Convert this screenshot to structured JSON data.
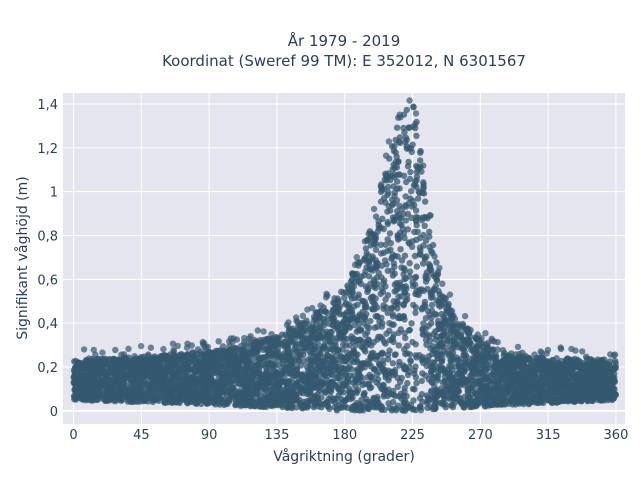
{
  "chart_data": {
    "type": "scatter",
    "title_line1": "År 1979 - 2019",
    "title_line2": "Koordinat (Sweref 99 TM): E 352012, N 6301567",
    "xlabel": "Vågriktning (grader)",
    "ylabel": "Signifikant våghöjd (m)",
    "xlim": [
      -7,
      366
    ],
    "ylim": [
      -0.06,
      1.45
    ],
    "x_ticks": [
      0,
      45,
      90,
      135,
      180,
      225,
      270,
      315,
      360
    ],
    "x_tick_labels": [
      "0",
      "45",
      "90",
      "135",
      "180",
      "225",
      "270",
      "315",
      "360"
    ],
    "y_ticks": [
      0,
      0.2,
      0.4,
      0.6,
      0.8,
      1,
      1.2,
      1.4
    ],
    "y_tick_labels": [
      "0",
      "0,2",
      "0,4",
      "0,6",
      "0,8",
      "1",
      "1,2",
      "1,4"
    ],
    "grid": true,
    "marker_color": "#34586f",
    "plot_bg": "#e5e5ef",
    "upper_envelope": [
      {
        "x": 0,
        "y": 0.23
      },
      {
        "x": 20,
        "y": 0.24
      },
      {
        "x": 45,
        "y": 0.25
      },
      {
        "x": 70,
        "y": 0.26
      },
      {
        "x": 90,
        "y": 0.27
      },
      {
        "x": 110,
        "y": 0.29
      },
      {
        "x": 135,
        "y": 0.35
      },
      {
        "x": 150,
        "y": 0.4
      },
      {
        "x": 165,
        "y": 0.47
      },
      {
        "x": 180,
        "y": 0.55
      },
      {
        "x": 190,
        "y": 0.68
      },
      {
        "x": 200,
        "y": 0.9
      },
      {
        "x": 210,
        "y": 1.2
      },
      {
        "x": 218,
        "y": 1.36
      },
      {
        "x": 222,
        "y": 1.39
      },
      {
        "x": 228,
        "y": 1.32
      },
      {
        "x": 234,
        "y": 1.0
      },
      {
        "x": 240,
        "y": 0.7
      },
      {
        "x": 247,
        "y": 0.52
      },
      {
        "x": 255,
        "y": 0.42
      },
      {
        "x": 265,
        "y": 0.36
      },
      {
        "x": 275,
        "y": 0.3
      },
      {
        "x": 290,
        "y": 0.25
      },
      {
        "x": 315,
        "y": 0.24
      },
      {
        "x": 340,
        "y": 0.24
      },
      {
        "x": 360,
        "y": 0.23
      }
    ],
    "lower_envelope": [
      {
        "x": 0,
        "y": 0.05
      },
      {
        "x": 90,
        "y": 0.03
      },
      {
        "x": 180,
        "y": 0.0
      },
      {
        "x": 225,
        "y": 0.0
      },
      {
        "x": 270,
        "y": 0.02
      },
      {
        "x": 360,
        "y": 0.05
      }
    ]
  }
}
